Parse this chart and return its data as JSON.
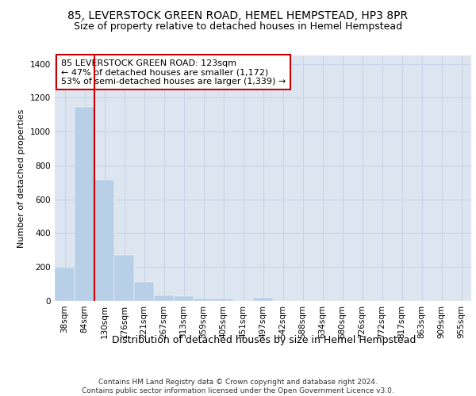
{
  "title1": "85, LEVERSTOCK GREEN ROAD, HEMEL HEMPSTEAD, HP3 8PR",
  "title2": "Size of property relative to detached houses in Hemel Hempstead",
  "xlabel": "Distribution of detached houses by size in Hemel Hempstead",
  "ylabel": "Number of detached properties",
  "categories": [
    "38sqm",
    "84sqm",
    "130sqm",
    "176sqm",
    "221sqm",
    "267sqm",
    "313sqm",
    "359sqm",
    "405sqm",
    "451sqm",
    "497sqm",
    "542sqm",
    "588sqm",
    "634sqm",
    "680sqm",
    "726sqm",
    "772sqm",
    "817sqm",
    "863sqm",
    "909sqm",
    "955sqm"
  ],
  "values": [
    195,
    1145,
    715,
    270,
    110,
    35,
    28,
    15,
    12,
    0,
    18,
    0,
    0,
    0,
    0,
    0,
    0,
    0,
    0,
    0,
    0
  ],
  "bar_color": "#b8cfe8",
  "bar_edge_color": "#b8cfe8",
  "grid_color": "#c8d4e8",
  "background_color": "#dde6f0",
  "vline_color": "#cc0000",
  "annotation_text": "85 LEVERSTOCK GREEN ROAD: 123sqm\n← 47% of detached houses are smaller (1,172)\n53% of semi-detached houses are larger (1,339) →",
  "annotation_box_color": "#ffffff",
  "annotation_box_edge": "#cc0000",
  "ylim": [
    0,
    1450
  ],
  "yticks": [
    0,
    200,
    400,
    600,
    800,
    1000,
    1200,
    1400
  ],
  "footer": "Contains HM Land Registry data © Crown copyright and database right 2024.\nContains public sector information licensed under the Open Government Licence v3.0.",
  "title1_fontsize": 10,
  "title2_fontsize": 9,
  "xlabel_fontsize": 9,
  "ylabel_fontsize": 8,
  "tick_fontsize": 7.5,
  "annotation_fontsize": 8,
  "footer_fontsize": 6.5
}
